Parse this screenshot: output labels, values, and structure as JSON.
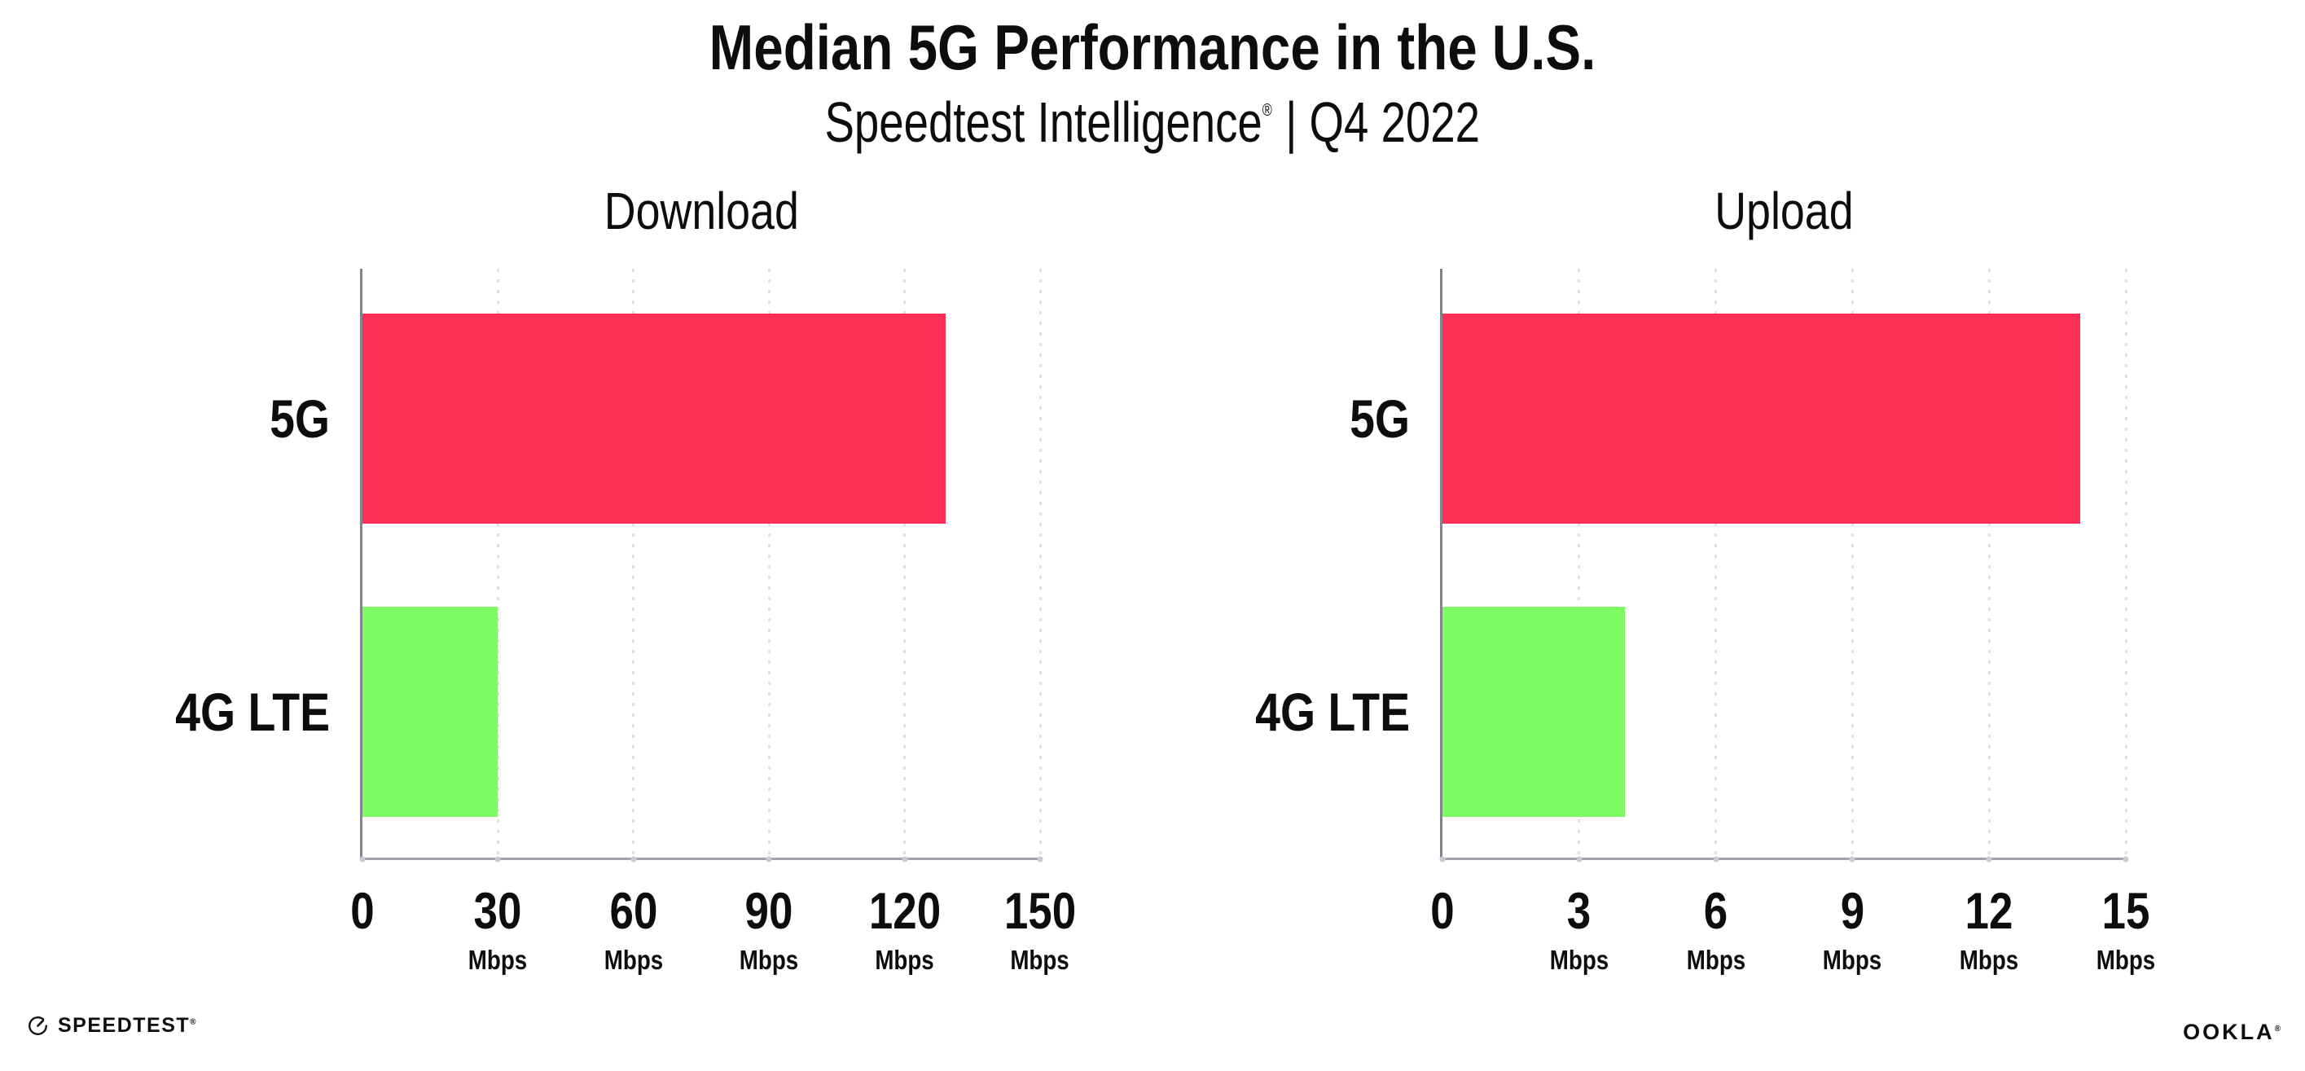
{
  "header": {
    "title": "Median 5G Performance in the U.S.",
    "subtitle": {
      "brand": "Speedtest Intelligence",
      "mark": "®",
      "tail": "| Q4 2022"
    }
  },
  "chart_data": [
    {
      "type": "bar",
      "orientation": "horizontal",
      "title": "Download",
      "categories": [
        "5G",
        "4G LTE"
      ],
      "values": [
        129,
        30
      ],
      "unit": "Mbps",
      "xlabel": "",
      "ylabel": "",
      "xlim": [
        0,
        150
      ],
      "xticks": [
        0,
        30,
        60,
        90,
        120,
        150
      ],
      "grid": "dotted vertical gridlines at each tick",
      "legend": "none",
      "bar_colors": [
        "#FF2E56",
        "#7EFB63"
      ]
    },
    {
      "type": "bar",
      "orientation": "horizontal",
      "title": "Upload",
      "categories": [
        "5G",
        "4G LTE"
      ],
      "values": [
        14,
        4
      ],
      "unit": "Mbps",
      "xlabel": "",
      "ylabel": "",
      "xlim": [
        0,
        15
      ],
      "xticks": [
        0,
        3,
        6,
        9,
        12,
        15
      ],
      "grid": "dotted vertical gridlines at each tick",
      "legend": "none",
      "bar_colors": [
        "#FF2E56",
        "#7EFB63"
      ]
    }
  ],
  "footer": {
    "speedtest": "SPEEDTEST",
    "speedtest_mark": "®",
    "ookla": "OOKLA",
    "ookla_mark": "®"
  },
  "colors": {
    "bar_5g": "#FF2E56",
    "bar_4g_lte": "#7EFB63",
    "gridline": "#dfe0ea",
    "axis_spine": "#83838b",
    "baseline": "#a2a2aa",
    "text": "#0d0d0d",
    "background": "#ffffff"
  }
}
